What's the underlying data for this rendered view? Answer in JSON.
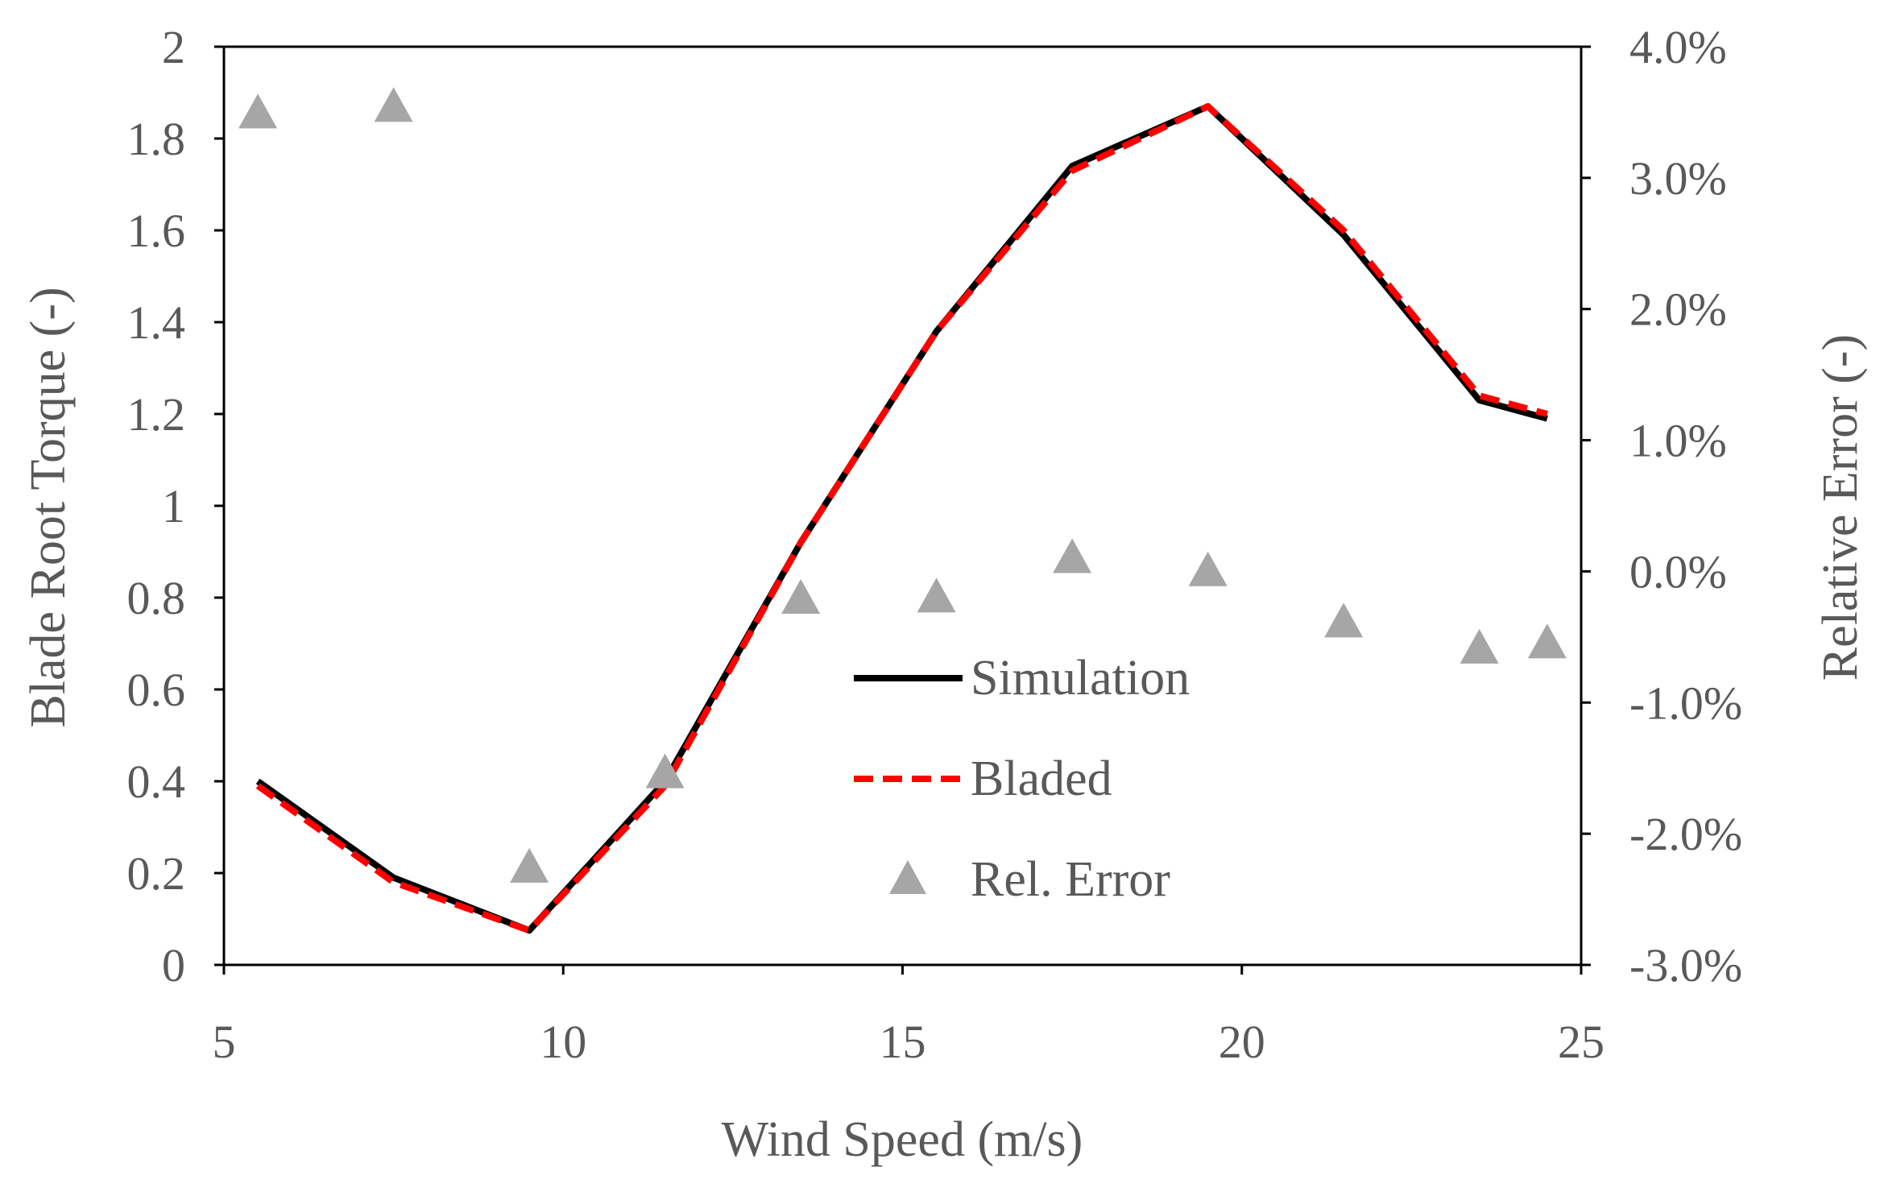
{
  "chart_data": {
    "type": "line",
    "title": "",
    "xlabel": "Wind Speed (m/s)",
    "ylabel": "Blade Root Torque (-)",
    "y2label": "Relative Error (-)",
    "xlim": [
      5,
      25
    ],
    "ylim": [
      0,
      2
    ],
    "y2lim": [
      -0.03,
      0.04
    ],
    "grid": false,
    "legend_position": "center",
    "x_ticks": [
      5,
      10,
      15,
      20,
      25
    ],
    "x_tick_labels": [
      "5",
      "10",
      "15",
      "20",
      "25"
    ],
    "y_ticks": [
      0,
      0.2,
      0.4,
      0.6,
      0.8,
      1,
      1.2,
      1.4,
      1.6,
      1.8,
      2
    ],
    "y_tick_labels": [
      "0",
      "0.2",
      "0.4",
      "0.6",
      "0.8",
      "1",
      "1.2",
      "1.4",
      "1.6",
      "1.8",
      "2"
    ],
    "y2_ticks": [
      -0.03,
      -0.02,
      -0.01,
      0,
      0.01,
      0.02,
      0.03,
      0.04
    ],
    "y2_tick_labels": [
      "-3.0%",
      "-2.0%",
      "-1.0%",
      "0.0%",
      "1.0%",
      "2.0%",
      "3.0%",
      "4.0%"
    ],
    "series": [
      {
        "name": "Simulation",
        "kind": "line",
        "axis": "left",
        "color": "#000000",
        "x": [
          5.5,
          7.5,
          9.5,
          11.5,
          13.5,
          15.5,
          17.5,
          19.5,
          21.5,
          23.5,
          24.5
        ],
        "values": [
          0.4,
          0.19,
          0.075,
          0.4,
          0.92,
          1.38,
          1.74,
          1.87,
          1.59,
          1.23,
          1.19
        ]
      },
      {
        "name": "Bladed",
        "kind": "dashed-line",
        "axis": "left",
        "color": "#ff0000",
        "x": [
          5.5,
          7.5,
          9.5,
          11.5,
          13.5,
          15.5,
          17.5,
          19.5,
          21.5,
          23.5,
          24.5
        ],
        "values": [
          0.39,
          0.18,
          0.075,
          0.39,
          0.92,
          1.38,
          1.73,
          1.87,
          1.6,
          1.24,
          1.2
        ]
      },
      {
        "name": "Rel. Error",
        "kind": "triangle-markers",
        "axis": "right",
        "color": "#a6a6a6",
        "x": [
          5.5,
          7.5,
          9.5,
          11.5,
          13.5,
          15.5,
          17.5,
          19.5,
          21.5,
          23.5,
          24.5
        ],
        "values": [
          0.035,
          0.0355,
          -0.0225,
          -0.0153,
          -0.002,
          -0.0019,
          0.0011,
          0.0001,
          -0.0038,
          -0.0058,
          -0.0054
        ]
      }
    ]
  }
}
